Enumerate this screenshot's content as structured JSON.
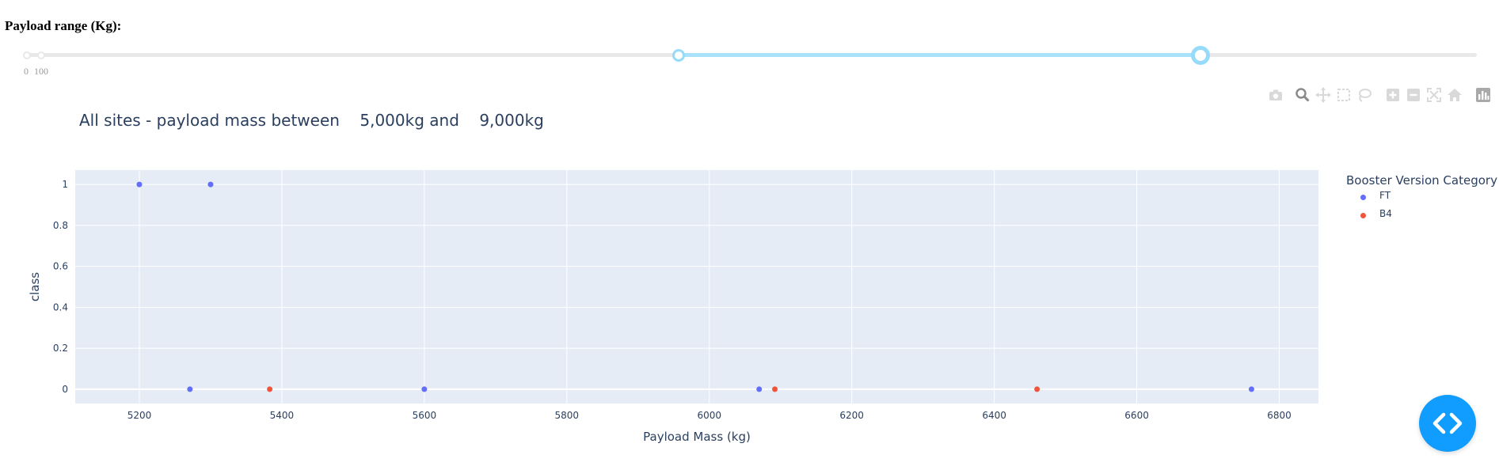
{
  "slider": {
    "label": "Payload range (Kg):",
    "min": 0,
    "max": 10000,
    "value_low": 5000,
    "value_high": 9000,
    "marks": [
      "0",
      "100"
    ],
    "colors": {
      "rail": "#e9e9e9",
      "track": "#abe2fb",
      "handle": "#96dbfa"
    }
  },
  "modebar": {
    "buttons": [
      "camera-icon",
      "zoom-icon",
      "pan-icon",
      "box-select-icon",
      "lasso-icon",
      "zoom-in-icon",
      "zoom-out-icon",
      "autoscale-icon",
      "reset-axes-icon",
      "plotly-logo-icon"
    ]
  },
  "chart": {
    "title": "All sites - payload mass between    5,000kg and    9,000kg"
  },
  "chart_data": {
    "type": "scatter",
    "xlabel": "Payload Mass (kg)",
    "ylabel": "class",
    "xlim": [
      5110,
      6855
    ],
    "ylim": [
      -0.07,
      1.07
    ],
    "x_ticks": [
      5200,
      5400,
      5600,
      5800,
      6000,
      6200,
      6400,
      6600,
      6800
    ],
    "y_ticks": [
      0,
      0.2,
      0.4,
      0.6,
      0.8,
      1
    ],
    "y_tick_labels": [
      "0",
      "0.2",
      "0.4",
      "0.6",
      "0.8",
      "1"
    ],
    "grid": true,
    "legend_title": "Booster Version Category",
    "legend_position": "right",
    "series": [
      {
        "name": "FT",
        "color": "#636efa",
        "points": [
          {
            "x": 5200,
            "y": 1
          },
          {
            "x": 5300,
            "y": 1
          },
          {
            "x": 5271,
            "y": 0
          },
          {
            "x": 5600,
            "y": 0
          },
          {
            "x": 6070,
            "y": 0
          },
          {
            "x": 6761,
            "y": 0
          }
        ]
      },
      {
        "name": "B4",
        "color": "#ef553b",
        "points": [
          {
            "x": 5383,
            "y": 0
          },
          {
            "x": 6092,
            "y": 0
          },
          {
            "x": 6460,
            "y": 0
          }
        ]
      }
    ],
    "plot_bg": "#e5ecf6"
  },
  "fab": {
    "icon": "code-brackets-icon",
    "color": "#119dff"
  }
}
